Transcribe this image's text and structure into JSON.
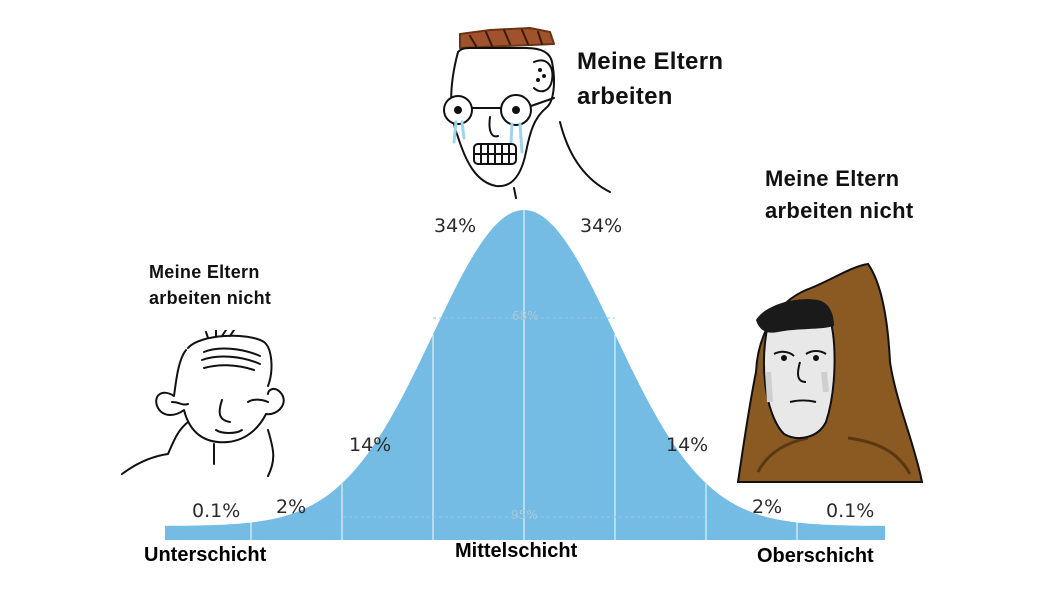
{
  "captions": {
    "middle": [
      "Meine Eltern",
      "arbeiten"
    ],
    "left": [
      "Meine Eltern",
      "arbeiten nicht"
    ],
    "right": [
      "Meine Eltern",
      "arbeiten nicht"
    ]
  },
  "classes": {
    "lower": "Unterschicht",
    "middle": "Mittelschicht",
    "upper": "Oberschicht"
  },
  "percentages": {
    "left_tail": "0.1%",
    "left_2sd": "2%",
    "left_1sd": "14%",
    "left_center": "34%",
    "right_center": "34%",
    "right_1sd": "14%",
    "right_2sd": "2%",
    "right_tail": "0.1%"
  },
  "inner_labels": {
    "one_sigma": "68%",
    "two_sigma": "95%"
  },
  "colors": {
    "curve_fill": "#74bce4",
    "hood": "#8b5a23",
    "hair": "#a0522d",
    "tears": "#9fd3ef"
  },
  "figures": {
    "middle": "crying-wojak-glasses",
    "left": "smug-wojak",
    "right": "hooded-wojak"
  }
}
